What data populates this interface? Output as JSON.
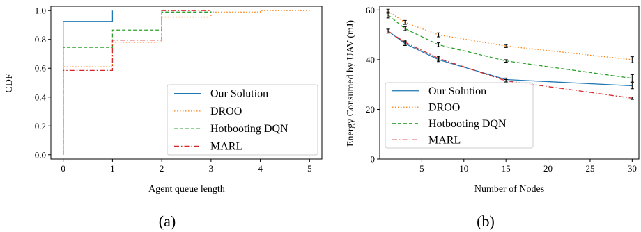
{
  "chart_data": [
    {
      "type": "line",
      "subtitle": "(a)",
      "xlabel": "Agent queue length",
      "ylabel": "CDF",
      "xlim": [
        -0.25,
        5.25
      ],
      "ylim": [
        -0.03,
        1.03
      ],
      "xticks": [
        "0",
        "1",
        "2",
        "3",
        "4",
        "5"
      ],
      "yticks": [
        "0.0",
        "0.2",
        "0.4",
        "0.6",
        "0.8",
        "1.0"
      ],
      "grid": false,
      "legend": "lower-right",
      "series": [
        {
          "name": "Our Solution",
          "color": "#1f77b4",
          "dash": "solid",
          "x": [
            0,
            0,
            1,
            1
          ],
          "y": [
            0,
            0.925,
            0.93,
            1.0
          ]
        },
        {
          "name": "DROO",
          "color": "#ff7f0e",
          "dash": "dotted",
          "x": [
            0,
            0,
            1,
            1,
            2,
            2,
            3,
            3,
            4,
            4,
            5
          ],
          "y": [
            0,
            0.61,
            0.615,
            0.78,
            0.785,
            0.955,
            0.96,
            0.99,
            0.993,
            1.0,
            1.0
          ]
        },
        {
          "name": "Hotbooting DQN",
          "color": "#2ca02c",
          "dash": "dashed",
          "x": [
            0,
            0,
            1,
            1,
            2,
            2,
            3
          ],
          "y": [
            0,
            0.745,
            0.75,
            0.865,
            0.865,
            0.99,
            0.995
          ]
        },
        {
          "name": "MARL",
          "color": "#d62728",
          "dash": "dashdot",
          "x": [
            0,
            0,
            1,
            1,
            2,
            2,
            3
          ],
          "y": [
            0,
            0.585,
            0.59,
            0.795,
            0.8,
            1.0,
            1.0
          ]
        }
      ]
    },
    {
      "type": "line",
      "subtitle": "(b)",
      "xlabel": "Number of Nodes",
      "ylabel": "Energy Consumed by UAV (mJ)",
      "xlim": [
        0,
        30.8
      ],
      "ylim": [
        0,
        61.5
      ],
      "xticks": [
        "5",
        "10",
        "15",
        "20",
        "25",
        "30"
      ],
      "yticks": [
        "0",
        "20",
        "40",
        "60"
      ],
      "grid": false,
      "legend": "lower-left",
      "series": [
        {
          "name": "Our Solution",
          "color": "#1f77b4",
          "dash": "solid",
          "x": [
            1,
            3,
            7,
            15,
            30
          ],
          "y": [
            51.5,
            46.5,
            40.0,
            32.0,
            29.5
          ],
          "err": [
            0.8,
            0.8,
            0.8,
            0.6,
            1.2
          ]
        },
        {
          "name": "DROO",
          "color": "#ff7f0e",
          "dash": "dotted",
          "x": [
            1,
            3,
            7,
            15,
            30
          ],
          "y": [
            59.5,
            55.0,
            50.0,
            45.5,
            40.0
          ],
          "err": [
            0.8,
            0.8,
            0.8,
            0.6,
            1.2
          ]
        },
        {
          "name": "Hotbooting DQN",
          "color": "#2ca02c",
          "dash": "dashed",
          "x": [
            1,
            3,
            7,
            15,
            30
          ],
          "y": [
            58.0,
            52.5,
            46.0,
            39.5,
            32.5
          ],
          "err": [
            1.2,
            0.8,
            0.8,
            0.5,
            1.5
          ]
        },
        {
          "name": "MARL",
          "color": "#d62728",
          "dash": "dashdot",
          "x": [
            1,
            3,
            7,
            15,
            30
          ],
          "y": [
            51.5,
            47.0,
            40.5,
            31.5,
            24.5
          ],
          "err": [
            0.8,
            0.8,
            0.8,
            0.5,
            0.5
          ]
        }
      ]
    }
  ]
}
